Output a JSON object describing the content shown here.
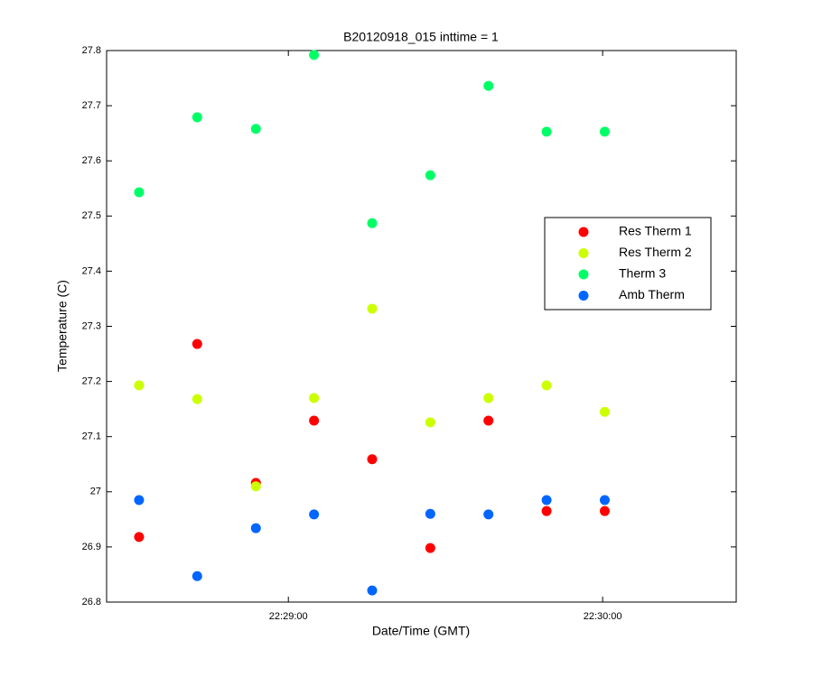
{
  "chart_data": {
    "type": "scatter",
    "title": "B20120918_015 inttime = 1",
    "xlabel": "Date/Time (GMT)",
    "ylabel": "Temperature (C)",
    "x": [
      82111.5,
      82122.6,
      82133.8,
      82144.9,
      82156,
      82167.1,
      82178.2,
      82189.3,
      82200.4
    ],
    "series": [
      {
        "name": "Res Therm 1",
        "color": "#ff0000",
        "values": [
          26.918,
          27.268,
          27.016,
          27.129,
          27.059,
          26.898,
          27.129,
          26.965,
          26.965
        ]
      },
      {
        "name": "Res Therm 2",
        "color": "#ccff00",
        "values": [
          27.193,
          27.168,
          27.01,
          27.17,
          27.332,
          27.126,
          27.17,
          27.193,
          27.145
        ]
      },
      {
        "name": "Therm 3",
        "color": "#00ff66",
        "values": [
          27.543,
          27.679,
          27.658,
          27.792,
          27.487,
          27.574,
          27.736,
          27.653,
          27.653
        ]
      },
      {
        "name": "Amb Therm",
        "color": "#0066ff",
        "values": [
          26.985,
          26.847,
          26.934,
          26.959,
          26.821,
          26.96,
          26.959,
          26.985,
          26.985
        ]
      }
    ],
    "xlim": [
      82105.3,
      82225.5
    ],
    "xticks": [
      {
        "value": 82140,
        "label": "22:29:00"
      },
      {
        "value": 82200,
        "label": "22:30:00"
      }
    ],
    "ylim": [
      26.8,
      27.8
    ],
    "yticks": [
      26.8,
      26.9,
      27,
      27.1,
      27.2,
      27.3,
      27.4,
      27.5,
      27.6,
      27.7,
      27.8
    ],
    "grid": false,
    "legend": "right"
  }
}
